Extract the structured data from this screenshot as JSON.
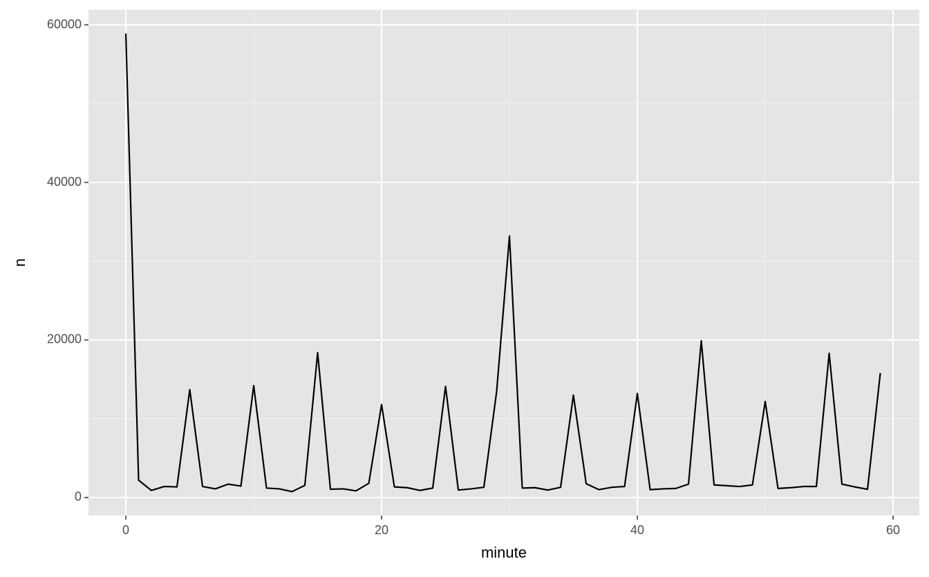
{
  "chart_data": {
    "type": "line",
    "x_label": "minute",
    "y_label": "n",
    "x": [
      0,
      1,
      2,
      3,
      4,
      5,
      6,
      7,
      8,
      9,
      10,
      11,
      12,
      13,
      14,
      15,
      16,
      17,
      18,
      19,
      20,
      21,
      22,
      23,
      24,
      25,
      26,
      27,
      28,
      29,
      30,
      31,
      32,
      33,
      34,
      35,
      36,
      37,
      38,
      39,
      40,
      41,
      42,
      43,
      44,
      45,
      46,
      47,
      48,
      49,
      50,
      51,
      52,
      53,
      54,
      55,
      56,
      57,
      58,
      59
    ],
    "series": [
      {
        "color": "#000000",
        "values": [
          58900,
          2200,
          900,
          1400,
          1350,
          13700,
          1400,
          1100,
          1700,
          1450,
          14200,
          1200,
          1100,
          750,
          1550,
          18400,
          1050,
          1100,
          850,
          1800,
          11800,
          1350,
          1250,
          900,
          1200,
          14100,
          950,
          1100,
          1300,
          13500,
          33200,
          1200,
          1250,
          950,
          1300,
          13000,
          1750,
          1000,
          1300,
          1400,
          13200,
          1000,
          1100,
          1150,
          1700,
          19900,
          1600,
          1500,
          1400,
          1600,
          12200,
          1150,
          1250,
          1400,
          1400,
          18300,
          1700,
          1350,
          1050,
          15800
        ]
      }
    ],
    "xlim": [
      -2.92,
      62.05
    ],
    "xticks": [
      0,
      20,
      40,
      60
    ],
    "xminor": [
      10,
      30,
      50
    ],
    "ylim": [
      -2281,
      61930
    ],
    "yticks": [
      0,
      20000,
      40000,
      60000
    ],
    "yminor": [
      10000,
      30000,
      50000
    ],
    "grid": true
  }
}
